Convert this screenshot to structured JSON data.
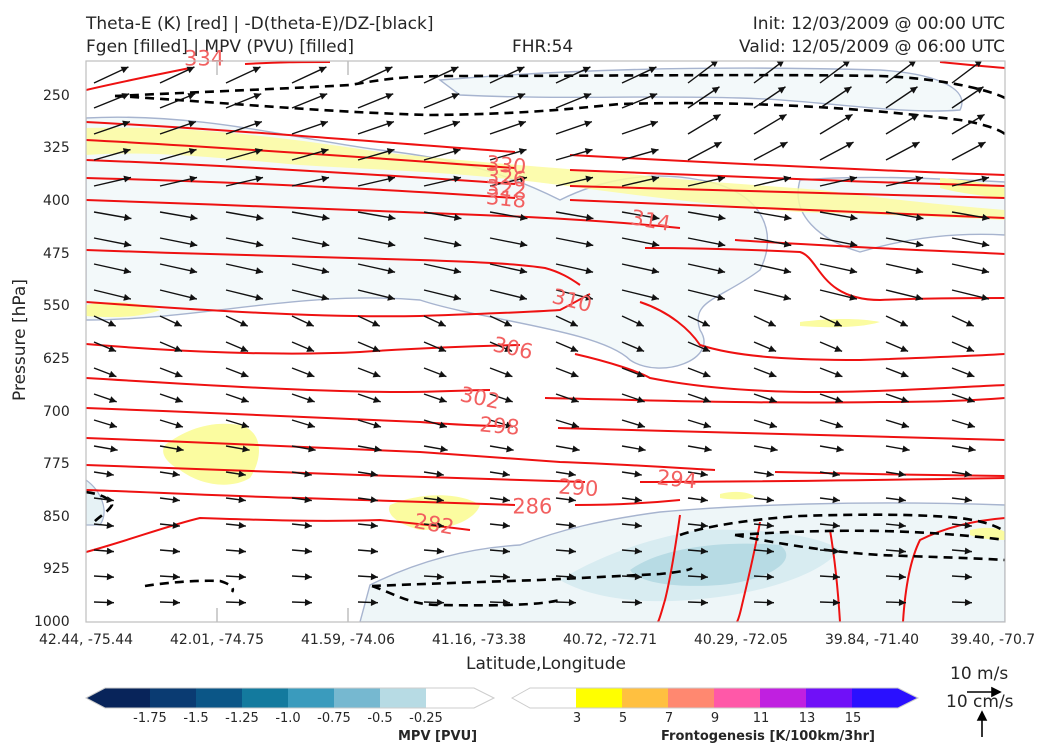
{
  "header": {
    "title_left_1": "Theta-E (K) [red] | -D(theta-E)/DZ-[black]",
    "title_left_2": "Fgen [filled] | MPV (PVU) [filled]",
    "fhr": "FHR:54",
    "init": "Init: 12/03/2009 @ 00:00 UTC",
    "valid": "Valid: 12/05/2009 @ 06:00 UTC"
  },
  "chart_data": {
    "type": "cross-section",
    "xlabel": "Latitude,Longitude",
    "ylabel": "Pressure [hPa]",
    "ylim": [
      1000,
      200
    ],
    "y_ticks": [
      "250",
      "325",
      "400",
      "475",
      "550",
      "625",
      "700",
      "775",
      "850",
      "925",
      "1000"
    ],
    "x_ticks": [
      "42.44, -75.44",
      "42.01, -74.75",
      "41.59, -74.06",
      "41.16, -73.38",
      "40.72, -72.71",
      "40.29, -72.05",
      "39.84, -71.40",
      "39.40, -70.7"
    ],
    "theta_e_contours": [
      {
        "value": "282",
        "label_x": 2.65,
        "label_p": 862
      },
      {
        "value": "286",
        "label_x": 3.4,
        "label_p": 837
      },
      {
        "value": "290",
        "label_x": 3.75,
        "label_p": 810
      },
      {
        "value": "294",
        "label_x": 4.5,
        "label_p": 798
      },
      {
        "value": "298",
        "label_x": 3.15,
        "label_p": 722
      },
      {
        "value": "302",
        "label_x": 3.0,
        "label_p": 682
      },
      {
        "value": "306",
        "label_x": 3.25,
        "label_p": 611
      },
      {
        "value": "310",
        "label_x": 3.7,
        "label_p": 543
      },
      {
        "value": "314",
        "label_x": 4.3,
        "label_p": 429
      },
      {
        "value": "318",
        "label_x": 3.2,
        "label_p": 398
      },
      {
        "value": "322",
        "label_x": 3.2,
        "label_p": 384
      },
      {
        "value": "326",
        "label_x": 3.2,
        "label_p": 368
      },
      {
        "value": "330",
        "label_x": 3.2,
        "label_p": 350
      },
      {
        "value": "334",
        "label_x": 0.9,
        "label_p": 198
      }
    ],
    "colorbars": [
      {
        "label": "MPV [PVU]",
        "ticks": [
          "-1.75",
          "-1.5",
          "-1.25",
          "-1.0",
          "-0.75",
          "-0.5",
          "-0.25"
        ],
        "colors": [
          "#08245a",
          "#0a3b72",
          "#0b5687",
          "#137a9e",
          "#3a9bbd",
          "#76b8d0",
          "#b7dbe4",
          "#ffffff"
        ]
      },
      {
        "label": "Frontogenesis [K/100km/3hr]",
        "ticks": [
          "3",
          "5",
          "7",
          "9",
          "11",
          "13",
          "15"
        ],
        "colors": [
          "#ffffff",
          "#ffff00",
          "#ffc040",
          "#ff8870",
          "#ff58a8",
          "#c020e0",
          "#7010f8",
          "#2a10ff"
        ]
      }
    ],
    "vector_key": {
      "horizontal": "10 m/s",
      "vertical": "10 cm/s"
    }
  }
}
